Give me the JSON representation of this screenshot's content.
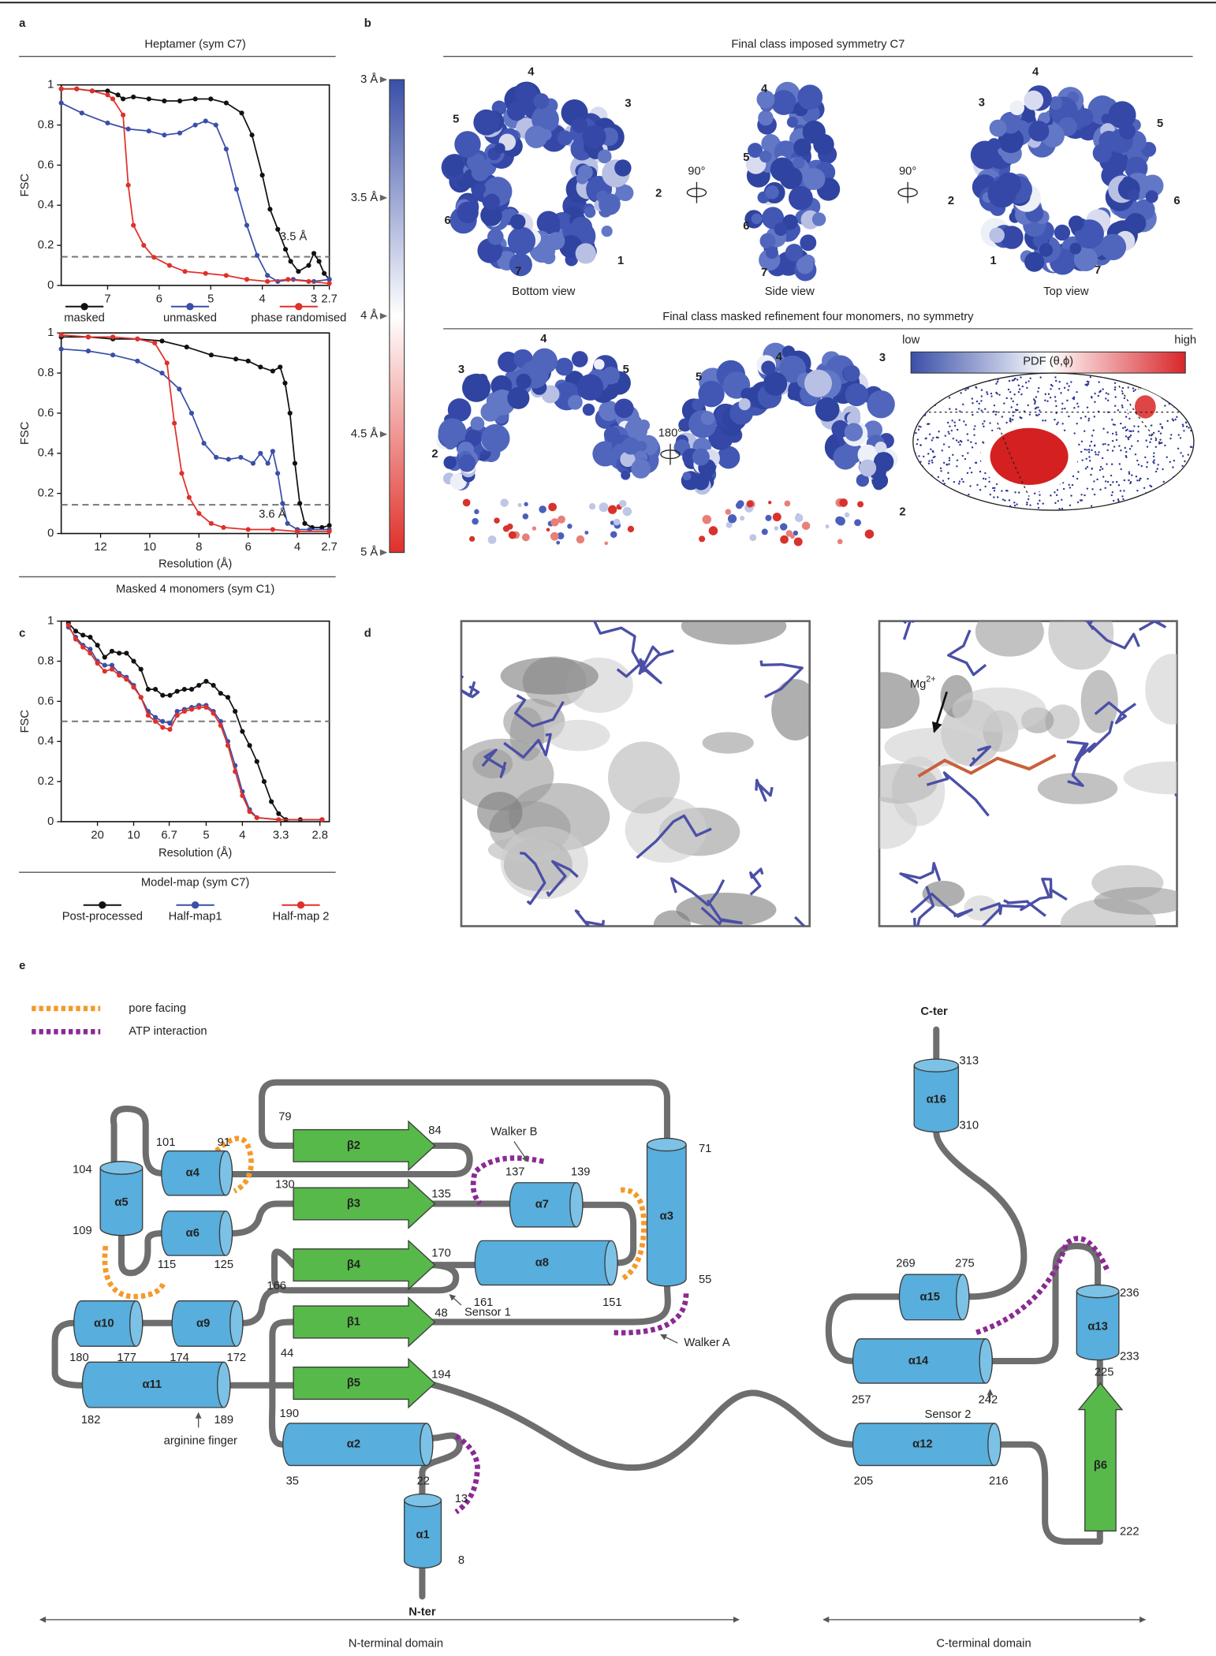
{
  "panel_labels": [
    "a",
    "b",
    "c",
    "d",
    "e"
  ],
  "chart_data": [
    {
      "type": "line",
      "title": "Heptamer (sym C7)",
      "ylabel": "FSC",
      "xlim": [
        7.9,
        2.7
      ],
      "xticks": [
        7,
        6,
        5,
        4,
        3,
        2.7
      ],
      "ylim": [
        0,
        1
      ],
      "yticks": [
        0,
        0.2,
        0.4,
        0.6,
        0.8,
        1
      ],
      "threshold": 0.143,
      "annotation": "3.5 Å",
      "legend": "bottom",
      "series": [
        {
          "name": "masked",
          "color": "#111111",
          "x": [
            7.9,
            7.6,
            7.3,
            7.0,
            6.8,
            6.7,
            6.5,
            6.2,
            5.9,
            5.6,
            5.3,
            5.0,
            4.7,
            4.4,
            4.2,
            4.0,
            3.85,
            3.7,
            3.55,
            3.45,
            3.3,
            3.1,
            3.0,
            2.9,
            2.8,
            2.7
          ],
          "values": [
            0.98,
            0.98,
            0.97,
            0.97,
            0.95,
            0.93,
            0.94,
            0.93,
            0.92,
            0.92,
            0.93,
            0.93,
            0.91,
            0.86,
            0.75,
            0.55,
            0.38,
            0.28,
            0.18,
            0.12,
            0.07,
            0.1,
            0.16,
            0.12,
            0.06,
            0.03
          ]
        },
        {
          "name": "unmasked",
          "color": "#3a4fa8",
          "x": [
            7.9,
            7.5,
            7.0,
            6.6,
            6.2,
            5.9,
            5.6,
            5.3,
            5.1,
            4.9,
            4.7,
            4.5,
            4.3,
            4.1,
            3.9,
            3.7,
            3.4,
            3.0,
            2.7
          ],
          "values": [
            0.91,
            0.86,
            0.81,
            0.78,
            0.77,
            0.75,
            0.76,
            0.8,
            0.82,
            0.8,
            0.68,
            0.48,
            0.3,
            0.15,
            0.05,
            0.02,
            0.03,
            0.02,
            0.03
          ]
        },
        {
          "name": "phase randomised",
          "color": "#e0302a",
          "x": [
            7.9,
            7.6,
            7.3,
            7.0,
            6.9,
            6.7,
            6.6,
            6.5,
            6.3,
            6.1,
            5.8,
            5.5,
            5.1,
            4.7,
            4.3,
            3.9,
            3.5,
            3.1,
            2.7
          ],
          "values": [
            0.98,
            0.98,
            0.97,
            0.95,
            0.93,
            0.85,
            0.5,
            0.3,
            0.2,
            0.14,
            0.1,
            0.07,
            0.06,
            0.05,
            0.03,
            0.02,
            0.03,
            0.02,
            0.01
          ]
        }
      ]
    },
    {
      "type": "line",
      "title": "Masked 4 monomers (sym C1)",
      "ylabel": "FSC",
      "xlabel": "Resolution (Å)",
      "xlim": [
        13.6,
        2.7
      ],
      "xticks": [
        12,
        10,
        8,
        6,
        4,
        2.7
      ],
      "ylim": [
        0,
        1
      ],
      "yticks": [
        0,
        0.2,
        0.4,
        0.6,
        0.8,
        1
      ],
      "threshold": 0.143,
      "annotation": "3.6 Å",
      "series": [
        {
          "name": "masked",
          "color": "#111111",
          "x": [
            13.6,
            12.5,
            11.5,
            10.5,
            9.5,
            8.5,
            7.5,
            6.5,
            6.0,
            5.5,
            5.0,
            4.7,
            4.5,
            4.3,
            4.1,
            3.9,
            3.7,
            3.4,
            3.0,
            2.7
          ],
          "values": [
            0.98,
            0.98,
            0.97,
            0.97,
            0.96,
            0.93,
            0.89,
            0.87,
            0.86,
            0.83,
            0.81,
            0.83,
            0.75,
            0.6,
            0.35,
            0.15,
            0.05,
            0.03,
            0.03,
            0.04
          ]
        },
        {
          "name": "unmasked",
          "color": "#3a4fa8",
          "x": [
            13.6,
            12.5,
            11.5,
            10.5,
            9.5,
            8.8,
            8.3,
            7.8,
            7.3,
            6.8,
            6.3,
            5.8,
            5.5,
            5.2,
            5.0,
            4.8,
            4.6,
            4.4,
            4.0,
            3.5,
            2.7
          ],
          "values": [
            0.92,
            0.91,
            0.89,
            0.86,
            0.8,
            0.72,
            0.6,
            0.45,
            0.38,
            0.37,
            0.38,
            0.35,
            0.4,
            0.35,
            0.41,
            0.3,
            0.15,
            0.05,
            0.02,
            0.02,
            0.02
          ]
        },
        {
          "name": "phase randomised",
          "color": "#e0302a",
          "x": [
            13.6,
            12.5,
            11.5,
            10.5,
            9.8,
            9.3,
            9.0,
            8.7,
            8.4,
            8.0,
            7.5,
            7.0,
            6.0,
            5.0,
            4.0,
            2.7
          ],
          "values": [
            0.99,
            0.98,
            0.98,
            0.97,
            0.95,
            0.85,
            0.55,
            0.3,
            0.18,
            0.1,
            0.05,
            0.03,
            0.02,
            0.02,
            0.01,
            0.01
          ]
        }
      ]
    },
    {
      "type": "line",
      "title": "Model-map (sym C7)",
      "ylabel": "FSC",
      "xlabel": "Resolution (Å)",
      "xlim": [
        0,
        0.37
      ],
      "xticks": [
        {
          "value": 0.05,
          "label": "20"
        },
        {
          "value": 0.1,
          "label": "10"
        },
        {
          "value": 0.149,
          "label": "6.7"
        },
        {
          "value": 0.2,
          "label": "5"
        },
        {
          "value": 0.25,
          "label": "4"
        },
        {
          "value": 0.303,
          "label": "3.3"
        },
        {
          "value": 0.357,
          "label": "2.8"
        }
      ],
      "ylim": [
        0,
        1
      ],
      "yticks": [
        0,
        0.2,
        0.4,
        0.6,
        0.8,
        1
      ],
      "threshold": 0.5,
      "legend": "bottom",
      "series": [
        {
          "name": "Post-processed",
          "color": "#111111",
          "x": [
            0.01,
            0.02,
            0.03,
            0.04,
            0.05,
            0.06,
            0.07,
            0.08,
            0.09,
            0.1,
            0.11,
            0.12,
            0.13,
            0.14,
            0.15,
            0.16,
            0.17,
            0.18,
            0.19,
            0.2,
            0.21,
            0.22,
            0.23,
            0.24,
            0.25,
            0.26,
            0.27,
            0.28,
            0.29,
            0.3,
            0.31,
            0.33,
            0.36
          ],
          "values": [
            0.99,
            0.95,
            0.93,
            0.92,
            0.88,
            0.82,
            0.85,
            0.84,
            0.84,
            0.8,
            0.76,
            0.66,
            0.66,
            0.63,
            0.63,
            0.65,
            0.66,
            0.66,
            0.68,
            0.7,
            0.68,
            0.64,
            0.62,
            0.55,
            0.45,
            0.38,
            0.3,
            0.2,
            0.1,
            0.04,
            0.01,
            0.01,
            0.01
          ]
        },
        {
          "name": "Half-map1",
          "color": "#3a4fa8",
          "x": [
            0.01,
            0.02,
            0.03,
            0.04,
            0.05,
            0.06,
            0.07,
            0.08,
            0.09,
            0.1,
            0.11,
            0.12,
            0.13,
            0.14,
            0.15,
            0.16,
            0.17,
            0.18,
            0.19,
            0.2,
            0.21,
            0.22,
            0.23,
            0.24,
            0.25,
            0.26,
            0.27,
            0.3,
            0.36
          ],
          "values": [
            0.97,
            0.92,
            0.88,
            0.86,
            0.8,
            0.78,
            0.78,
            0.74,
            0.72,
            0.68,
            0.62,
            0.55,
            0.52,
            0.5,
            0.49,
            0.55,
            0.56,
            0.57,
            0.58,
            0.58,
            0.55,
            0.5,
            0.4,
            0.28,
            0.15,
            0.06,
            0.02,
            0.01,
            0.01
          ]
        },
        {
          "name": "Half-map 2",
          "color": "#e0302a",
          "x": [
            0.01,
            0.02,
            0.03,
            0.04,
            0.05,
            0.06,
            0.07,
            0.08,
            0.09,
            0.1,
            0.11,
            0.12,
            0.13,
            0.14,
            0.15,
            0.16,
            0.17,
            0.18,
            0.19,
            0.2,
            0.21,
            0.22,
            0.23,
            0.24,
            0.25,
            0.26,
            0.27,
            0.3,
            0.36
          ],
          "values": [
            0.98,
            0.91,
            0.87,
            0.84,
            0.79,
            0.75,
            0.76,
            0.73,
            0.71,
            0.67,
            0.62,
            0.53,
            0.5,
            0.47,
            0.46,
            0.53,
            0.55,
            0.56,
            0.57,
            0.57,
            0.54,
            0.48,
            0.38,
            0.25,
            0.13,
            0.05,
            0.02,
            0.01,
            0.01
          ]
        }
      ]
    }
  ],
  "colorbar": {
    "lim": [
      3,
      5
    ],
    "ticks": [
      {
        "value": 3,
        "label": "3 Å"
      },
      {
        "value": 3.5,
        "label": "3.5 Å"
      },
      {
        "value": 4,
        "label": "4 Å"
      },
      {
        "value": 4.5,
        "label": "4.5 Å"
      },
      {
        "value": 5,
        "label": "5 Å"
      }
    ]
  },
  "panel_b": {
    "title_symmetric": "Final class imposed symmetry C7",
    "views": [
      "Bottom view",
      "Side view",
      "Top view"
    ],
    "rotations": [
      "90°",
      "90°",
      "180°"
    ],
    "title_masked": "Final class masked refinement four monomers, no symmetry",
    "map_labels": {
      "bottom": [
        4,
        3,
        5,
        2,
        6,
        7,
        1
      ],
      "side": [
        4,
        5,
        6,
        7
      ],
      "top": [
        4,
        3,
        5,
        2,
        6,
        1,
        7
      ],
      "left": [
        4,
        3,
        5,
        2
      ],
      "right": [
        4,
        5,
        3,
        2
      ]
    },
    "pdf": {
      "low": "low",
      "title": "PDF (θ,ϕ)",
      "high": "high"
    }
  },
  "panel_d": {
    "ion": "Mg",
    "charge": "2+"
  },
  "panel_e": {
    "legend": [
      "pore facing",
      "ATP interaction"
    ],
    "helices": [
      "α1",
      "α2",
      "α3",
      "α4",
      "α5",
      "α6",
      "α7",
      "α8",
      "α9",
      "α10",
      "α11",
      "α12",
      "α13",
      "α14",
      "α15",
      "α16"
    ],
    "strands": [
      "β1",
      "β2",
      "β3",
      "β4",
      "β5",
      "β6"
    ],
    "residues": [
      79,
      84,
      101,
      91,
      104,
      109,
      115,
      125,
      130,
      135,
      137,
      139,
      71,
      55,
      166,
      170,
      161,
      151,
      44,
      48,
      190,
      194,
      180,
      177,
      174,
      172,
      182,
      189,
      35,
      22,
      13,
      8,
      313,
      310,
      269,
      275,
      236,
      233,
      257,
      242,
      225,
      222,
      205,
      216
    ],
    "annotations": [
      "Walker B",
      "Walker A",
      "Sensor 1",
      "Sensor 2",
      "arginine finger"
    ],
    "termini": [
      "N-ter",
      "C-ter"
    ],
    "domains": [
      "N-terminal domain",
      "C-terminal domain"
    ]
  }
}
